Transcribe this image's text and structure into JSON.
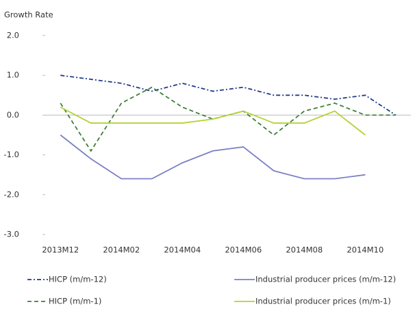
{
  "chart_data": {
    "type": "line",
    "y_label": "Growth Rate",
    "categories": [
      "2013M12",
      null,
      "2014M02",
      null,
      "2014M04",
      null,
      "2014M06",
      null,
      "2014M08",
      null,
      "2014M10",
      null
    ],
    "series": [
      {
        "name": "HICP (m/m-12)",
        "color": "#1f3a8a",
        "dash": "dashdot",
        "values": [
          1.0,
          0.9,
          0.8,
          0.6,
          0.8,
          0.6,
          0.7,
          0.5,
          0.5,
          0.4,
          0.5,
          0.0
        ]
      },
      {
        "name": "Industrial producer prices (m/m-12)",
        "color": "#7a80c4",
        "dash": "solid",
        "values": [
          -0.5,
          -1.1,
          -1.6,
          -1.6,
          -1.2,
          -0.9,
          -0.8,
          -1.4,
          -1.6,
          -1.6,
          -1.5,
          null
        ]
      },
      {
        "name": "HICP (m/m-1)",
        "color": "#3f7f3a",
        "dash": "dashed",
        "values": [
          0.3,
          -0.9,
          0.3,
          0.7,
          0.2,
          -0.1,
          0.1,
          -0.5,
          0.1,
          0.3,
          0.0,
          0.0
        ]
      },
      {
        "name": "Industrial producer prices (m/m-1)",
        "color": "#b4d235",
        "dash": "solid",
        "values": [
          0.2,
          -0.2,
          -0.2,
          -0.2,
          -0.2,
          -0.1,
          0.1,
          -0.2,
          -0.2,
          0.1,
          -0.5,
          null
        ]
      }
    ],
    "ylim": [
      -3.0,
      2.0
    ],
    "yticks": [
      {
        "value": 2.0,
        "label": "2.0"
      },
      {
        "value": 1.0,
        "label": "1.0"
      },
      {
        "value": 0,
        "label": "0.0"
      },
      {
        "value": -1.0,
        "label": "-1.0"
      },
      {
        "value": -2.0,
        "label": "-2.0"
      },
      {
        "value": -3.0,
        "label": "-3.0"
      }
    ],
    "grid": false,
    "legend": "bottom"
  }
}
